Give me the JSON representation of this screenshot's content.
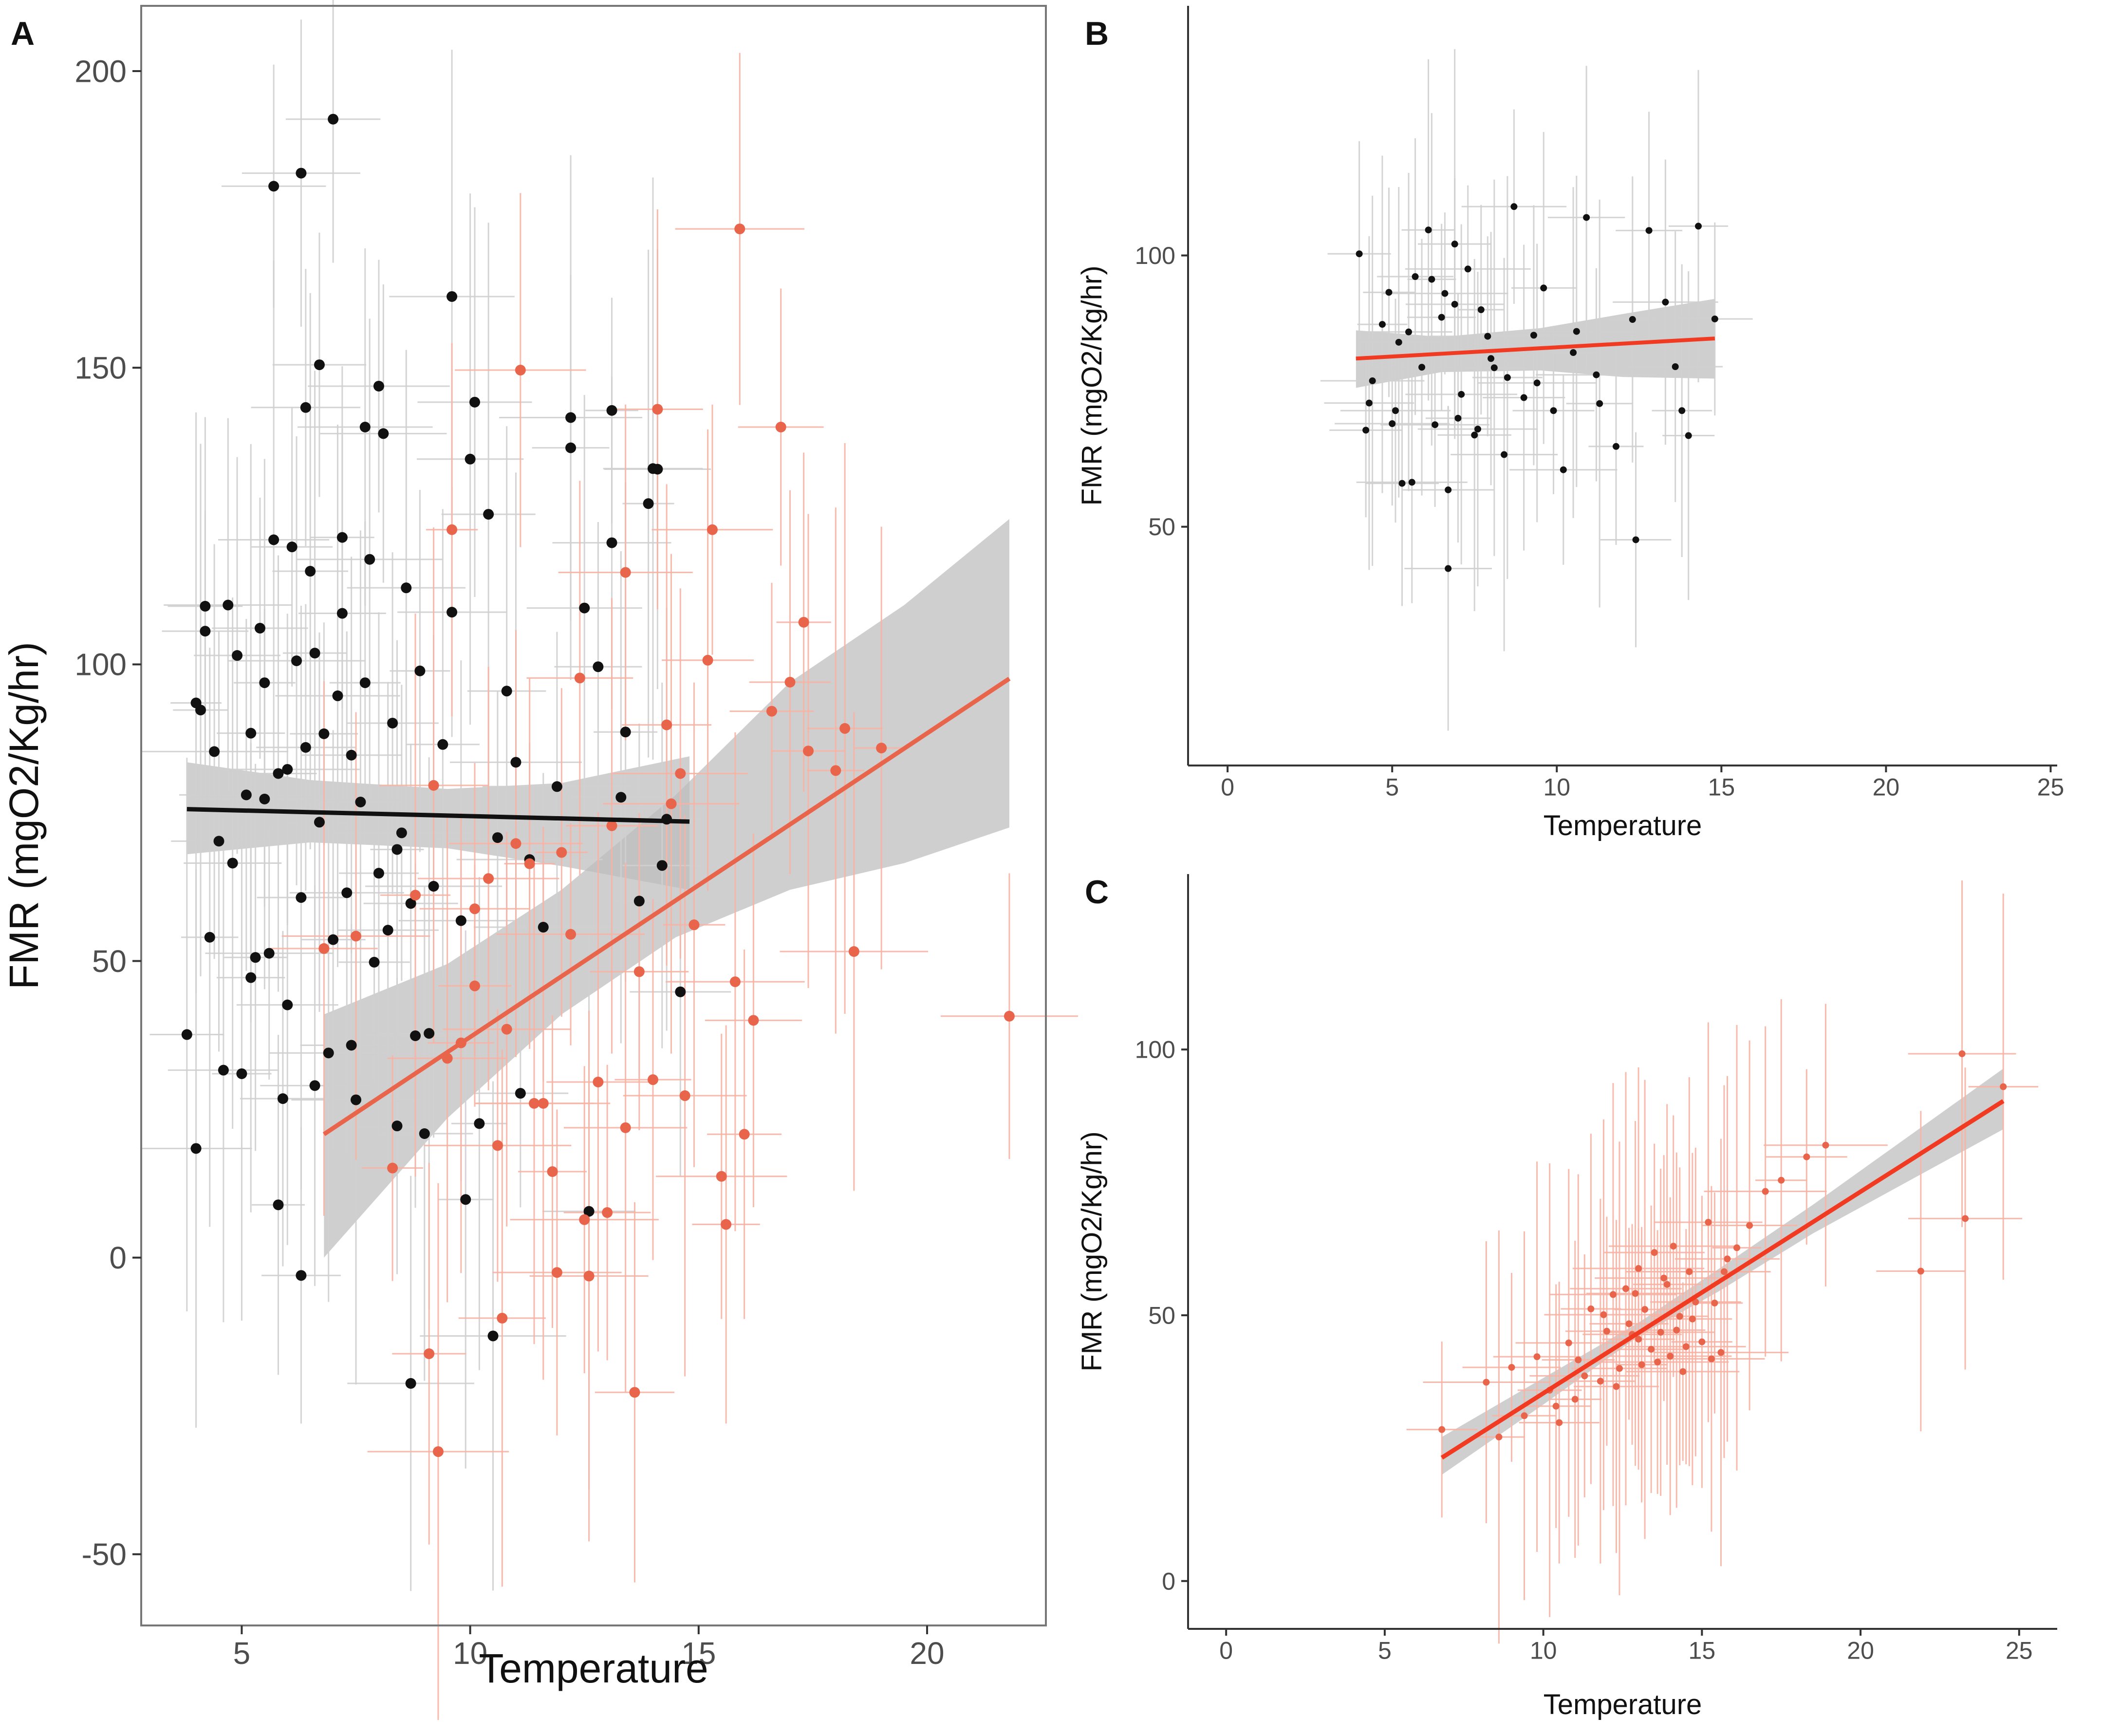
{
  "colors": {
    "black_points": "#111111",
    "red_points": "#e8644a",
    "red_fit": "#f03a22",
    "black_fit": "#111111",
    "ci_band": "#bdbdbd",
    "error_bar_gray": "#cfcfcf",
    "error_bar_red": "#f6b2a3",
    "axis": "#333333",
    "tick_text": "#4d4d4d"
  },
  "chart_data": [
    {
      "panel": "A",
      "type": "scatter",
      "title": "",
      "xlabel": "Temperature",
      "ylabel": "FMR (mgO2/Kg/hr)",
      "xlim": [
        2.8,
        22.6
      ],
      "ylim": [
        -62,
        211
      ],
      "xticks": [
        5,
        10,
        15,
        20
      ],
      "yticks": [
        -50,
        0,
        50,
        100,
        150,
        200
      ],
      "xtick_labels": [
        "5",
        "10",
        "15",
        "20"
      ],
      "ytick_labels": [
        "-50",
        "0",
        "50",
        "100",
        "150",
        "200"
      ],
      "frame": "full-box",
      "series": [
        {
          "name": "black group",
          "color": "#111111",
          "x": [
            3.8,
            4.0,
            4.1,
            4.2,
            4.3,
            4.4,
            4.5,
            4.6,
            4.7,
            4.8,
            4.9,
            5.0,
            5.1,
            5.2,
            5.3,
            5.4,
            5.5,
            5.6,
            5.7,
            5.8,
            5.9,
            6.0,
            6.1,
            6.2,
            6.3,
            6.4,
            6.5,
            6.6,
            6.7,
            6.8,
            6.9,
            7.0,
            7.1,
            7.2,
            7.3,
            7.4,
            7.5,
            7.6,
            7.7,
            7.8,
            7.9,
            8.0,
            8.1,
            8.2,
            8.3,
            8.4,
            8.5,
            8.6,
            8.7,
            8.8,
            8.9,
            9.0,
            9.2,
            9.4,
            9.6,
            9.8,
            10.0,
            10.2,
            10.4,
            10.6,
            10.8,
            11.0,
            11.3,
            11.6,
            11.9,
            12.2,
            12.5,
            12.8,
            13.1,
            13.4,
            13.7,
            14.0,
            14.3,
            14.6,
            5.7,
            6.3,
            7.0,
            9.6,
            6.7,
            8.0,
            6.4,
            7.7,
            10.1,
            12.2,
            13.1,
            13.9,
            14.1,
            8.7,
            6.3,
            10.5,
            5.8,
            7.4,
            9.1,
            12.6,
            4.0,
            4.2,
            6.0,
            6.6,
            7.2,
            8.4,
            5.2,
            5.5,
            9.9,
            11.1,
            13.3,
            14.2
          ],
          "y": [
            37.6,
            18.4,
            92.3,
            105.6,
            54.0,
            85.3,
            70.2,
            31.6,
            110.0,
            66.5,
            101.5,
            31.0,
            78.0,
            88.4,
            50.6,
            106.1,
            96.9,
            51.3,
            121.0,
            81.6,
            26.8,
            42.6,
            119.8,
            100.6,
            60.7,
            86.0,
            115.7,
            29.0,
            73.4,
            88.3,
            34.5,
            53.6,
            94.7,
            108.6,
            61.5,
            84.7,
            26.6,
            76.8,
            96.9,
            117.7,
            49.8,
            64.8,
            138.9,
            55.2,
            90.1,
            22.2,
            71.6,
            112.9,
            59.7,
            37.4,
            98.9,
            20.9,
            62.6,
            86.5,
            108.8,
            56.8,
            134.6,
            22.6,
            125.3,
            70.8,
            95.5,
            83.5,
            67.1,
            55.7,
            79.4,
            141.6,
            109.5,
            99.6,
            142.8,
            88.6,
            60.1,
            133.0,
            73.9,
            44.8,
            180.6,
            182.8,
            191.9,
            162.0,
            150.5,
            146.9,
            143.3,
            140.0,
            144.2,
            136.5,
            120.5,
            127.1,
            132.9,
            -21.2,
            -3.0,
            -13.2,
            8.9,
            35.8,
            37.8,
            7.8,
            93.5,
            109.8,
            82.3,
            101.9,
            121.4,
            68.8,
            47.2,
            77.3,
            9.8,
            27.7,
            77.6,
            66.1
          ]
        },
        {
          "name": "red group",
          "color": "#e8644a",
          "x": [
            6.8,
            7.5,
            8.3,
            8.8,
            9.2,
            9.5,
            9.8,
            10.1,
            10.4,
            10.7,
            11.0,
            11.3,
            11.6,
            11.9,
            12.2,
            12.5,
            12.8,
            13.1,
            13.4,
            13.7,
            14.0,
            14.3,
            14.6,
            14.9,
            15.2,
            15.5,
            15.8,
            16.2,
            16.6,
            17.0,
            17.4,
            18.0,
            18.4,
            19.0,
            21.8,
            15.9,
            16.8,
            11.1,
            9.6,
            14.1,
            13.4,
            15.3,
            12.4,
            10.1,
            9.1,
            9.3,
            13.6,
            11.8,
            12.6,
            14.4,
            10.6,
            11.4,
            13.0,
            14.7,
            15.6,
            16.0,
            17.3,
            18.2,
            12.0,
            10.8
          ],
          "y": [
            52.1,
            54.2,
            15.1,
            61.1,
            79.6,
            33.6,
            36.2,
            45.8,
            63.9,
            -10.2,
            69.8,
            66.4,
            26.0,
            -2.5,
            54.5,
            6.4,
            29.6,
            72.8,
            21.9,
            48.2,
            30.0,
            89.8,
            81.6,
            56.1,
            100.7,
            13.7,
            46.5,
            40.0,
            92.1,
            97.0,
            85.4,
            82.1,
            51.6,
            85.9,
            40.7,
            173.4,
            140.0,
            149.6,
            122.7,
            143.0,
            115.5,
            122.7,
            97.7,
            58.8,
            -16.2,
            -32.7,
            -22.7,
            14.5,
            -3.1,
            76.5,
            18.9,
            26.0,
            7.6,
            27.3,
            5.6,
            20.8,
            107.1,
            89.2,
            68.3,
            38.5
          ]
        }
      ],
      "fits": [
        {
          "name": "black fit",
          "color": "#111111",
          "x": [
            3.8,
            14.8
          ],
          "y": [
            75.6,
            73.5
          ],
          "ci": [
            [
              3.8,
              68.0,
              83.5
            ],
            [
              6.5,
              70.0,
              80.5
            ],
            [
              9.5,
              69.0,
              79.0
            ],
            [
              12.0,
              66.0,
              80.0
            ],
            [
              14.8,
              62.0,
              84.5
            ]
          ]
        },
        {
          "name": "red fit",
          "color": "#e8644a",
          "x": [
            6.8,
            21.8
          ],
          "y": [
            20.8,
            97.6
          ],
          "ci": [
            [
              6.8,
              0.0,
              41.0
            ],
            [
              9.5,
              23.5,
              49.5
            ],
            [
              12.0,
              41.0,
              62.0
            ],
            [
              14.5,
              54.0,
              78.0
            ],
            [
              17.0,
              62.0,
              97.0
            ],
            [
              19.5,
              66.5,
              110.0
            ],
            [
              21.8,
              72.5,
              124.5
            ]
          ]
        }
      ]
    },
    {
      "panel": "B",
      "type": "scatter",
      "title": "",
      "xlabel": "Temperature",
      "ylabel": "FMR (mgO2/Kg/hr)",
      "xlim": [
        -1.2,
        25.2
      ],
      "ylim": [
        6,
        146
      ],
      "xticks": [
        0,
        5,
        10,
        15,
        20,
        25
      ],
      "yticks": [
        50,
        100
      ],
      "xtick_labels": [
        "0",
        "5",
        "10",
        "15",
        "20",
        "25"
      ],
      "ytick_labels": [
        "50",
        "100"
      ],
      "frame": "left-bottom",
      "series": [
        {
          "name": "points",
          "color": "#111111",
          "x": [
            4.0,
            4.2,
            4.4,
            4.7,
            4.9,
            5.1,
            5.3,
            5.5,
            5.7,
            5.9,
            6.1,
            6.3,
            6.5,
            6.7,
            6.9,
            7.1,
            7.3,
            7.5,
            7.7,
            7.9,
            8.1,
            8.4,
            8.7,
            9.0,
            9.3,
            9.6,
            9.9,
            10.2,
            10.5,
            10.9,
            11.3,
            11.8,
            12.3,
            12.8,
            13.3,
            13.8,
            14.3,
            14.8,
            6.2,
            6.6,
            7.0,
            5.6,
            8.5,
            4.3,
            5.0,
            6.9,
            8.0,
            9.4,
            10.6,
            11.2,
            13.6,
            14.0,
            12.4,
            6.7,
            5.2,
            7.6
          ],
          "y": [
            100.3,
            67.8,
            76.9,
            87.3,
            93.2,
            71.4,
            58.0,
            85.9,
            96.1,
            79.4,
            104.7,
            68.8,
            88.6,
            56.8,
            102.1,
            74.4,
            97.5,
            66.9,
            90.0,
            85.1,
            79.3,
            63.3,
            109.0,
            73.8,
            85.3,
            94.0,
            71.4,
            60.5,
            82.1,
            107.0,
            72.7,
            64.8,
            88.2,
            104.6,
            91.4,
            71.4,
            105.4,
            88.3,
            95.6,
            93.0,
            70.0,
            58.2,
            77.5,
            72.8,
            69.0,
            91.0,
            81.0,
            76.5,
            86.0,
            78.0,
            79.5,
            66.8,
            47.6,
            42.3,
            84.0,
            68.0
          ]
        }
      ],
      "fits": [
        {
          "name": "fit",
          "color": "#f03a22",
          "x": [
            3.9,
            14.8
          ],
          "y": [
            81.0,
            84.7
          ],
          "ci": [
            [
              3.9,
              75.6,
              86.2
            ],
            [
              6.5,
              78.5,
              85.0
            ],
            [
              9.5,
              78.8,
              86.6
            ],
            [
              12.0,
              77.6,
              89.2
            ],
            [
              14.8,
              77.3,
              92.0
            ]
          ]
        }
      ]
    },
    {
      "panel": "C",
      "type": "scatter",
      "title": "",
      "xlabel": "Temperature",
      "ylabel": "FMR (mgO2/Kg/hr)",
      "xlim": [
        -1.2,
        26.2
      ],
      "ylim": [
        -9,
        133
      ],
      "xticks": [
        0,
        5,
        10,
        15,
        20,
        25
      ],
      "yticks": [
        0,
        50,
        100
      ],
      "xtick_labels": [
        "0",
        "5",
        "10",
        "15",
        "20",
        "25"
      ],
      "ytick_labels": [
        "0",
        "50",
        "100"
      ],
      "frame": "left-bottom",
      "series": [
        {
          "name": "points",
          "color": "#e8644a",
          "x": [
            6.8,
            8.2,
            8.6,
            9.0,
            9.4,
            9.8,
            10.2,
            10.5,
            10.8,
            11.0,
            11.3,
            11.5,
            11.8,
            12.0,
            12.2,
            12.4,
            12.6,
            12.8,
            13.0,
            13.1,
            13.2,
            13.4,
            13.5,
            13.7,
            13.8,
            14.0,
            14.1,
            14.3,
            14.5,
            14.6,
            14.8,
            15.0,
            15.2,
            15.4,
            15.6,
            15.8,
            16.1,
            16.5,
            17.0,
            17.5,
            18.3,
            18.9,
            21.9,
            23.2,
            23.3,
            24.5,
            11.9,
            12.7,
            13.6,
            14.4,
            15.3,
            12.3,
            13.0,
            14.2,
            11.1,
            10.4,
            12.9,
            13.9,
            14.7,
            15.7
          ],
          "y": [
            28.5,
            37.4,
            27.1,
            40.2,
            31.1,
            42.2,
            35.9,
            29.8,
            44.8,
            34.2,
            38.6,
            51.2,
            37.6,
            47.0,
            53.9,
            40.0,
            55.0,
            46.4,
            58.8,
            40.7,
            51.1,
            43.6,
            61.8,
            46.8,
            57.0,
            42.3,
            63.0,
            49.8,
            44.1,
            58.2,
            52.5,
            45.0,
            67.5,
            52.3,
            43.0,
            60.6,
            62.7,
            66.9,
            73.3,
            75.4,
            79.8,
            82.0,
            58.3,
            99.2,
            68.2,
            93.0,
            50.1,
            48.4,
            41.2,
            39.4,
            41.8,
            36.6,
            45.5,
            47.2,
            41.6,
            32.9,
            54.1,
            55.8,
            49.3,
            58.2
          ]
        }
      ],
      "fits": [
        {
          "name": "fit",
          "color": "#f03a22",
          "x": [
            6.8,
            24.5
          ],
          "y": [
            23.2,
            90.3
          ],
          "ci": [
            [
              6.8,
              20.0,
              27.1
            ],
            [
              10.0,
              33.2,
              38.2
            ],
            [
              13.0,
              46.0,
              48.6
            ],
            [
              15.5,
              54.4,
              58.6
            ],
            [
              18.5,
              65.4,
              70.8
            ],
            [
              21.5,
              75.2,
              83.6
            ],
            [
              24.5,
              85.0,
              96.4
            ]
          ]
        }
      ]
    }
  ],
  "panels": {
    "a_letter": "A",
    "b_letter": "B",
    "c_letter": "C"
  }
}
